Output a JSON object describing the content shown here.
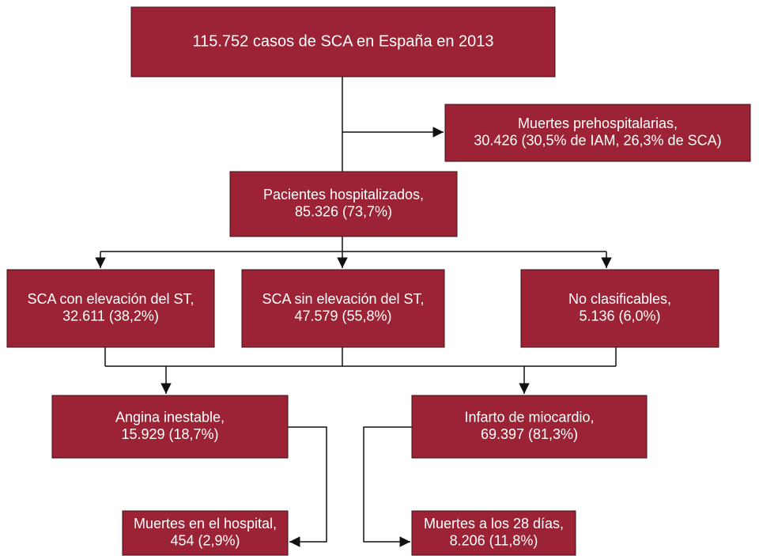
{
  "nodes": [
    {
      "lines": [
        "115.752 casos de SCA en España en 2013"
      ]
    },
    {
      "lines": [
        "Muertes prehospitalarias,",
        "30.426 (30,5% de IAM, 26,3% de SCA)"
      ]
    },
    {
      "lines": [
        "Pacientes hospitalizados,",
        "85.326 (73,7%)"
      ]
    },
    {
      "lines": [
        "SCA con elevación del ST,",
        "32.611 (38,2%)"
      ]
    },
    {
      "lines": [
        "SCA sin elevación del ST,",
        "47.579 (55,8%)"
      ]
    },
    {
      "lines": [
        "No clasificables,",
        "5.136 (6,0%)"
      ]
    },
    {
      "lines": [
        "Angina inestable,",
        "15.929 (18,7%)"
      ]
    },
    {
      "lines": [
        "Infarto de miocardio,",
        "69.397 (81,3%)"
      ]
    },
    {
      "lines": [
        "Muertes en el hospital,",
        "454 (2,9%)"
      ]
    },
    {
      "lines": [
        "Muertes a los 28 días,",
        "8.206 (11,8%)"
      ]
    }
  ]
}
